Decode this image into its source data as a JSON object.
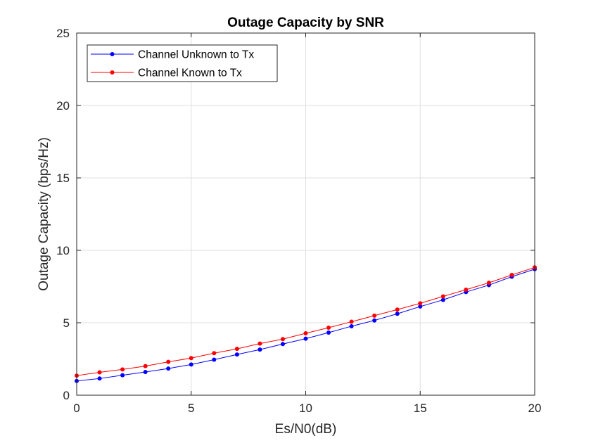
{
  "chart_data": {
    "type": "line",
    "title": "Outage Capacity by SNR",
    "xlabel": "Es/N0(dB)",
    "ylabel": "Outage Capacity (bps/Hz)",
    "xlim": [
      0,
      20
    ],
    "ylim": [
      0,
      25
    ],
    "xticks": [
      "0",
      "5",
      "10",
      "15",
      "20"
    ],
    "yticks": [
      "0",
      "5",
      "10",
      "15",
      "20",
      "25"
    ],
    "grid": true,
    "legend_position": "top-left",
    "x": [
      0,
      1,
      2,
      3,
      4,
      5,
      6,
      7,
      8,
      9,
      10,
      11,
      12,
      13,
      14,
      15,
      16,
      17,
      18,
      19,
      20
    ],
    "series": [
      {
        "name": "Channel Unknown to Tx",
        "color": "#0000ff",
        "values": [
          0.98,
          1.15,
          1.38,
          1.6,
          1.84,
          2.12,
          2.45,
          2.81,
          3.15,
          3.53,
          3.9,
          4.32,
          4.76,
          5.16,
          5.62,
          6.12,
          6.58,
          7.12,
          7.6,
          8.18,
          8.7
        ]
      },
      {
        "name": "Channel Known to Tx",
        "color": "#ff0000",
        "values": [
          1.35,
          1.58,
          1.78,
          2.01,
          2.3,
          2.56,
          2.9,
          3.2,
          3.56,
          3.87,
          4.27,
          4.66,
          5.07,
          5.49,
          5.91,
          6.34,
          6.82,
          7.28,
          7.76,
          8.3,
          8.82
        ]
      }
    ]
  }
}
